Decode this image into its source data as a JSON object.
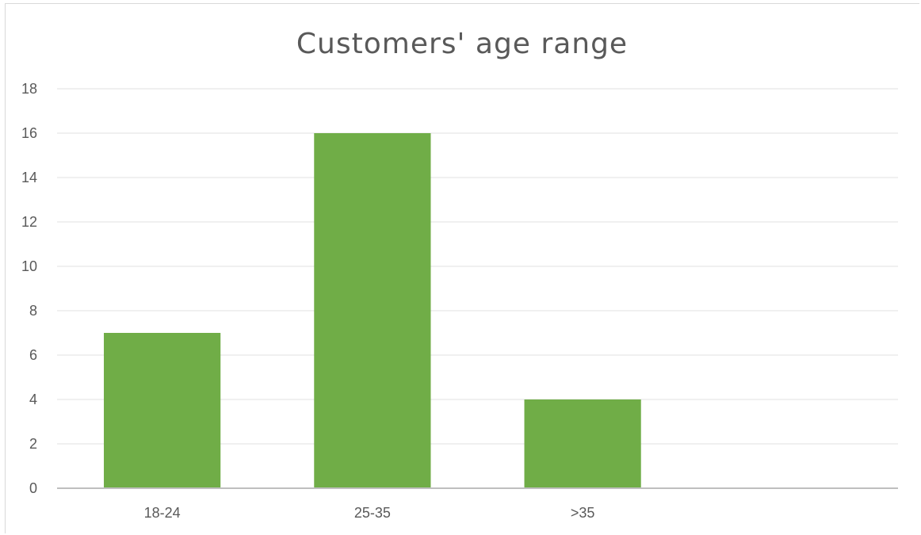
{
  "chart_data": {
    "type": "bar",
    "title": "Customers' age range",
    "categories": [
      "18-24",
      "25-35",
      ">35",
      ""
    ],
    "values": [
      7,
      16,
      4,
      null
    ],
    "ylim": [
      0,
      18
    ],
    "ytick_step": 2,
    "yticks": [
      "0",
      "2",
      "4",
      "6",
      "8",
      "10",
      "12",
      "14",
      "16",
      "18"
    ],
    "grid": true,
    "legend": "none",
    "colors": {
      "bar": "#70ad47",
      "grid": "#e6e6e6",
      "axis": "#bfbfbf",
      "text": "#595959"
    }
  }
}
